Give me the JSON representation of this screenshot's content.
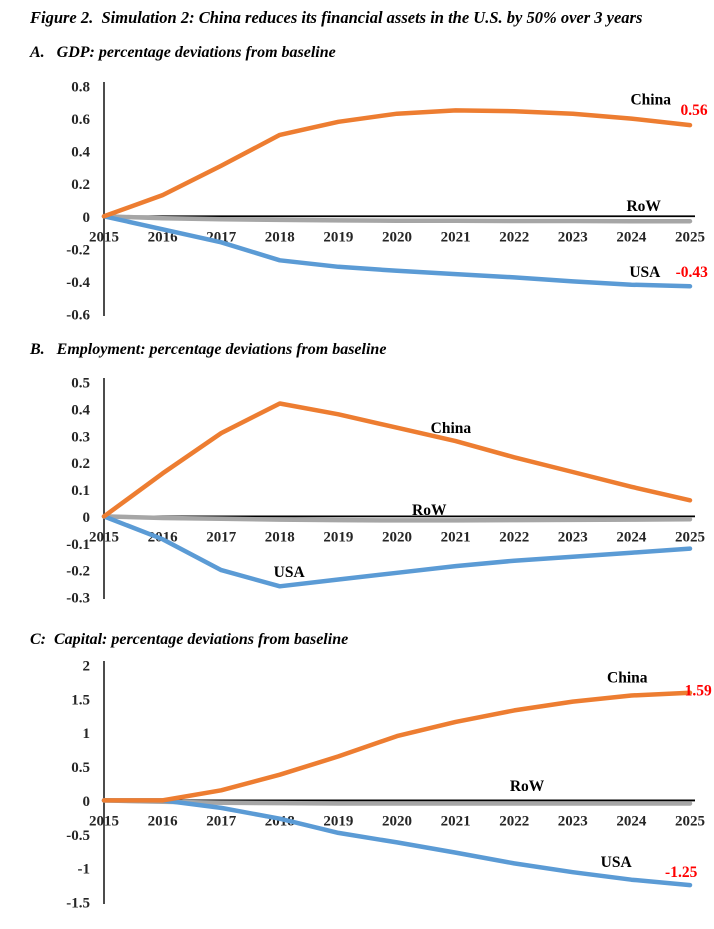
{
  "figure": {
    "title": "Figure 2.  Simulation 2: China reduces its financial assets in the U.S. by 50% over 3 years"
  },
  "colors": {
    "china": "#ED7D31",
    "usa": "#5B9BD5",
    "row": "#A6A6A6",
    "axis": "#000000",
    "value_label": "#FF0000",
    "tick_text": "#262626"
  },
  "chart_data": [
    {
      "id": "gdp",
      "type": "line",
      "heading": "A.   GDP: percentage deviations from baseline",
      "xlabel": "",
      "ylabel": "",
      "x": [
        2015,
        2016,
        2017,
        2018,
        2019,
        2020,
        2021,
        2022,
        2023,
        2024,
        2025
      ],
      "ylim": [
        -0.6,
        0.8
      ],
      "grid": false,
      "legend_position": "inline-annotations",
      "y_ticks": [
        {
          "value": 0.8,
          "label": "0.8"
        },
        {
          "value": 0.6,
          "label": "0.6"
        },
        {
          "value": 0.4,
          "label": "0.4"
        },
        {
          "value": 0.2,
          "label": "0.2"
        },
        {
          "value": 0,
          "label": "0"
        },
        {
          "value": -0.2,
          "label": "-0.2"
        },
        {
          "value": -0.4,
          "label": "-0.4"
        },
        {
          "value": -0.6,
          "label": "-0.6"
        }
      ],
      "series": [
        {
          "name": "China",
          "color": "#ED7D31",
          "values": [
            0,
            0.13,
            0.31,
            0.5,
            0.58,
            0.63,
            0.65,
            0.645,
            0.63,
            0.6,
            0.56
          ]
        },
        {
          "name": "USA",
          "color": "#5B9BD5",
          "values": [
            0,
            -0.08,
            -0.16,
            -0.27,
            -0.31,
            -0.335,
            -0.355,
            -0.375,
            -0.4,
            -0.42,
            -0.43
          ]
        },
        {
          "name": "RoW",
          "color": "#A6A6A6",
          "values": [
            0,
            -0.012,
            -0.018,
            -0.022,
            -0.025,
            -0.027,
            -0.028,
            -0.029,
            -0.029,
            -0.03,
            -0.03
          ]
        }
      ],
      "annotations": [
        {
          "text": "China",
          "year": 2024.33,
          "value": 0.72,
          "color": "#000000"
        },
        {
          "text": "0.56",
          "year": 2025.07,
          "value": 0.655,
          "color": "#FF0000"
        },
        {
          "text": "RoW",
          "year": 2024.21,
          "value": 0.065,
          "color": "#000000"
        },
        {
          "text": "USA",
          "year": 2024.23,
          "value": -0.34,
          "color": "#000000"
        },
        {
          "text": "-0.43",
          "year": 2025.03,
          "value": -0.34,
          "color": "#FF0000"
        }
      ]
    },
    {
      "id": "employment",
      "type": "line",
      "heading": "B.   Employment: percentage deviations from baseline",
      "xlabel": "",
      "ylabel": "",
      "x": [
        2015,
        2016,
        2017,
        2018,
        2019,
        2020,
        2021,
        2022,
        2023,
        2024,
        2025
      ],
      "ylim": [
        -0.3,
        0.5
      ],
      "grid": false,
      "legend_position": "inline-annotations",
      "y_ticks": [
        {
          "value": 0.5,
          "label": "0.5"
        },
        {
          "value": 0.4,
          "label": "0.4"
        },
        {
          "value": 0.3,
          "label": "0.3"
        },
        {
          "value": 0.2,
          "label": "0.2"
        },
        {
          "value": 0.1,
          "label": "0.1"
        },
        {
          "value": 0,
          "label": "0"
        },
        {
          "value": -0.1,
          "label": "-0.1"
        },
        {
          "value": -0.2,
          "label": "-0.2"
        },
        {
          "value": -0.3,
          "label": "-0.3"
        }
      ],
      "series": [
        {
          "name": "China",
          "color": "#ED7D31",
          "values": [
            0,
            0.16,
            0.31,
            0.42,
            0.38,
            0.33,
            0.28,
            0.22,
            0.165,
            0.11,
            0.06
          ]
        },
        {
          "name": "USA",
          "color": "#5B9BD5",
          "values": [
            0,
            -0.085,
            -0.2,
            -0.26,
            -0.235,
            -0.21,
            -0.185,
            -0.165,
            -0.15,
            -0.135,
            -0.12
          ]
        },
        {
          "name": "RoW",
          "color": "#A6A6A6",
          "values": [
            0,
            -0.006,
            -0.009,
            -0.012,
            -0.014,
            -0.015,
            -0.015,
            -0.014,
            -0.013,
            -0.012,
            -0.011
          ]
        }
      ],
      "annotations": [
        {
          "text": "China",
          "year": 2020.92,
          "value": 0.33,
          "color": "#000000"
        },
        {
          "text": "RoW",
          "year": 2020.55,
          "value": 0.025,
          "color": "#000000"
        },
        {
          "text": "USA",
          "year": 2018.16,
          "value": -0.205,
          "color": "#000000"
        }
      ]
    },
    {
      "id": "capital",
      "type": "line",
      "heading": "C:  Capital: percentage deviations from baseline",
      "xlabel": "",
      "ylabel": "",
      "x": [
        2015,
        2016,
        2017,
        2018,
        2019,
        2020,
        2021,
        2022,
        2023,
        2024,
        2025
      ],
      "ylim": [
        -1.5,
        2
      ],
      "grid": false,
      "legend_position": "inline-annotations",
      "y_ticks": [
        {
          "value": 2,
          "label": "2"
        },
        {
          "value": 1.5,
          "label": "1.5"
        },
        {
          "value": 1,
          "label": "1"
        },
        {
          "value": 0.5,
          "label": "0.5"
        },
        {
          "value": 0,
          "label": "0"
        },
        {
          "value": -0.5,
          "label": "-0.5"
        },
        {
          "value": -1,
          "label": "-1"
        },
        {
          "value": -1.5,
          "label": "-1.5"
        }
      ],
      "series": [
        {
          "name": "China",
          "color": "#ED7D31",
          "values": [
            0,
            0.0,
            0.15,
            0.38,
            0.65,
            0.95,
            1.16,
            1.33,
            1.46,
            1.55,
            1.59
          ]
        },
        {
          "name": "USA",
          "color": "#5B9BD5",
          "values": [
            0,
            0.0,
            -0.11,
            -0.27,
            -0.48,
            -0.62,
            -0.77,
            -0.93,
            -1.06,
            -1.17,
            -1.25
          ]
        },
        {
          "name": "RoW",
          "color": "#A6A6A6",
          "values": [
            0,
            -0.02,
            -0.035,
            -0.04,
            -0.045,
            -0.045,
            -0.045,
            -0.045,
            -0.045,
            -0.045,
            -0.045
          ]
        }
      ],
      "annotations": [
        {
          "text": "China",
          "year": 2023.93,
          "value": 1.82,
          "color": "#000000"
        },
        {
          "text": "1.59",
          "year": 2025.14,
          "value": 1.63,
          "color": "#FF0000"
        },
        {
          "text": "RoW",
          "year": 2022.22,
          "value": 0.22,
          "color": "#000000"
        },
        {
          "text": "USA",
          "year": 2023.74,
          "value": -0.9,
          "color": "#000000"
        },
        {
          "text": "-1.25",
          "year": 2024.85,
          "value": -1.05,
          "color": "#FF0000"
        }
      ]
    }
  ]
}
